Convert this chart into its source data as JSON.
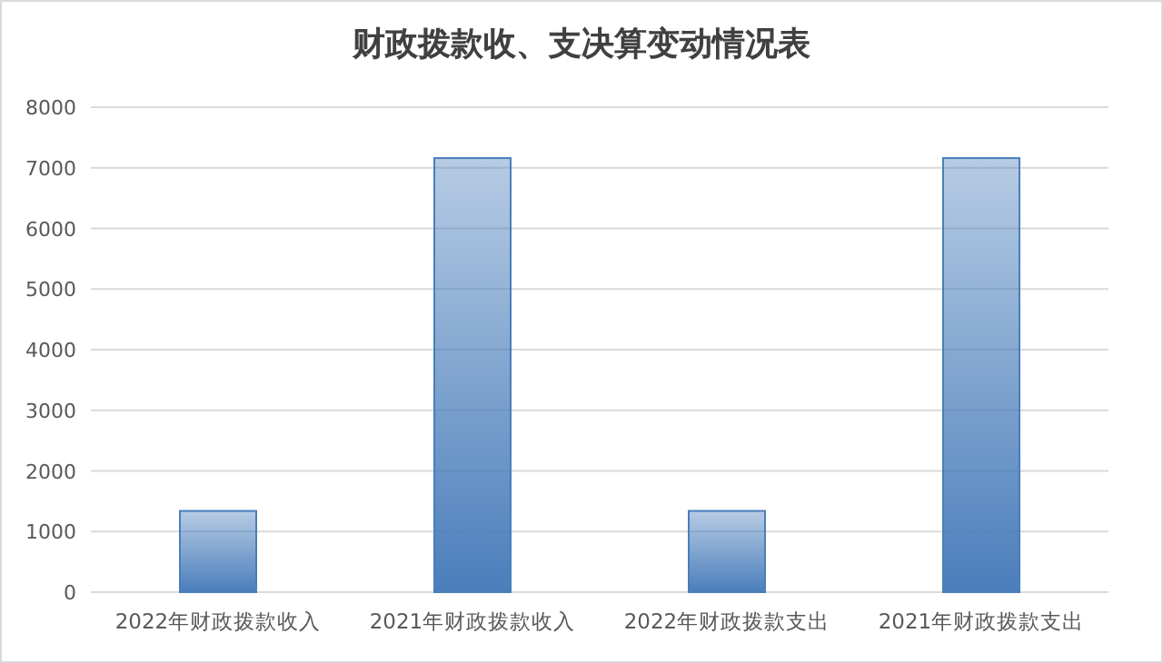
{
  "chart_data": {
    "type": "bar",
    "title": "财政拨款收、支决算变动情况表",
    "categories": [
      "2022年财政拨款收入",
      "2021年财政拨款收入",
      "2022年财政拨款支出",
      "2021年财政拨款支出"
    ],
    "values": [
      1340,
      7160,
      1340,
      7160
    ],
    "color": "#4a7ebb",
    "ylim": [
      0,
      8000
    ],
    "yticks": [
      0,
      1000,
      2000,
      3000,
      4000,
      5000,
      6000,
      7000,
      8000
    ],
    "grid": "y"
  }
}
